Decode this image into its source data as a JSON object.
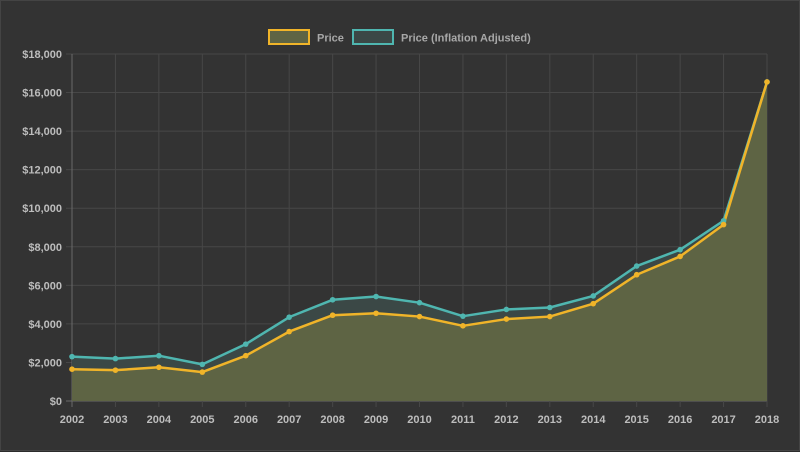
{
  "chart_data": {
    "type": "area",
    "title": "",
    "xlabel": "",
    "ylabel": "",
    "categories": [
      "2002",
      "2003",
      "2004",
      "2005",
      "2006",
      "2007",
      "2008",
      "2009",
      "2010",
      "2011",
      "2012",
      "2013",
      "2014",
      "2015",
      "2016",
      "2017",
      "2018"
    ],
    "ylim": [
      0,
      18000
    ],
    "y_ticks": [
      0,
      2000,
      4000,
      6000,
      8000,
      10000,
      12000,
      14000,
      16000,
      18000
    ],
    "y_tick_labels": [
      "$0",
      "$2,000",
      "$4,000",
      "$6,000",
      "$8,000",
      "$10,000",
      "$12,000",
      "$14,000",
      "$16,000",
      "$18,000"
    ],
    "grid": true,
    "legend_position": "top-center",
    "series": [
      {
        "name": "Price",
        "color": "#f0b429",
        "fill": "#5e6444",
        "values": [
          1650,
          1600,
          1750,
          1500,
          2350,
          3600,
          4450,
          4550,
          4380,
          3900,
          4250,
          4380,
          5050,
          6550,
          7500,
          9150,
          16550
        ]
      },
      {
        "name": "Price (Inflation Adjusted)",
        "color": "#4fb6b0",
        "fill": "#3b4846",
        "values": [
          2300,
          2200,
          2350,
          1900,
          2950,
          4350,
          5250,
          5420,
          5100,
          4400,
          4750,
          4850,
          5450,
          7000,
          7850,
          9350,
          16550
        ]
      }
    ]
  }
}
